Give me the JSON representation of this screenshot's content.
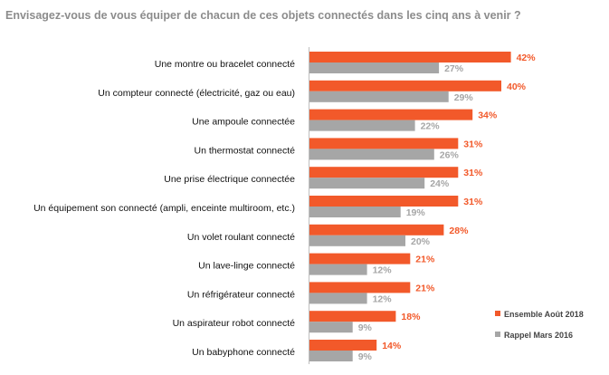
{
  "chart_data": {
    "type": "bar",
    "orientation": "horizontal",
    "title": "Envisagez-vous de vous équiper de chacun de ces objets connectés dans les cinq ans à venir ?",
    "categories": [
      "Une montre ou bracelet connecté",
      "Un compteur connecté (électricité, gaz ou eau)",
      "Une ampoule connectée",
      "Un thermostat connecté",
      "Une prise électrique connectée",
      "Un équipement son connecté (ampli, enceinte multiroom, etc.)",
      "Un volet roulant connecté",
      "Un lave-linge connecté",
      "Un réfrigérateur connecté",
      "Un aspirateur robot connecté",
      "Un babyphone connecté"
    ],
    "series": [
      {
        "name": "Ensemble Août 2018",
        "color": "#f2592a",
        "values": [
          42,
          40,
          34,
          31,
          31,
          31,
          28,
          21,
          21,
          18,
          14
        ],
        "labels": [
          "42%",
          "40%",
          "34%",
          "31%",
          "31%",
          "31%",
          "28%",
          "21%",
          "21%",
          "18%",
          "14%"
        ]
      },
      {
        "name": "Rappel Mars 2016",
        "color": "#a6a6a6",
        "values": [
          27,
          29,
          22,
          26,
          24,
          19,
          20,
          12,
          12,
          9,
          9
        ],
        "labels": [
          "27%",
          "29%",
          "22%",
          "26%",
          "24%",
          "19%",
          "20%",
          "12%",
          "12%",
          "9%",
          "9%"
        ]
      }
    ],
    "xlim": [
      0,
      42
    ],
    "grid": false,
    "legend_position": "bottom-right"
  }
}
